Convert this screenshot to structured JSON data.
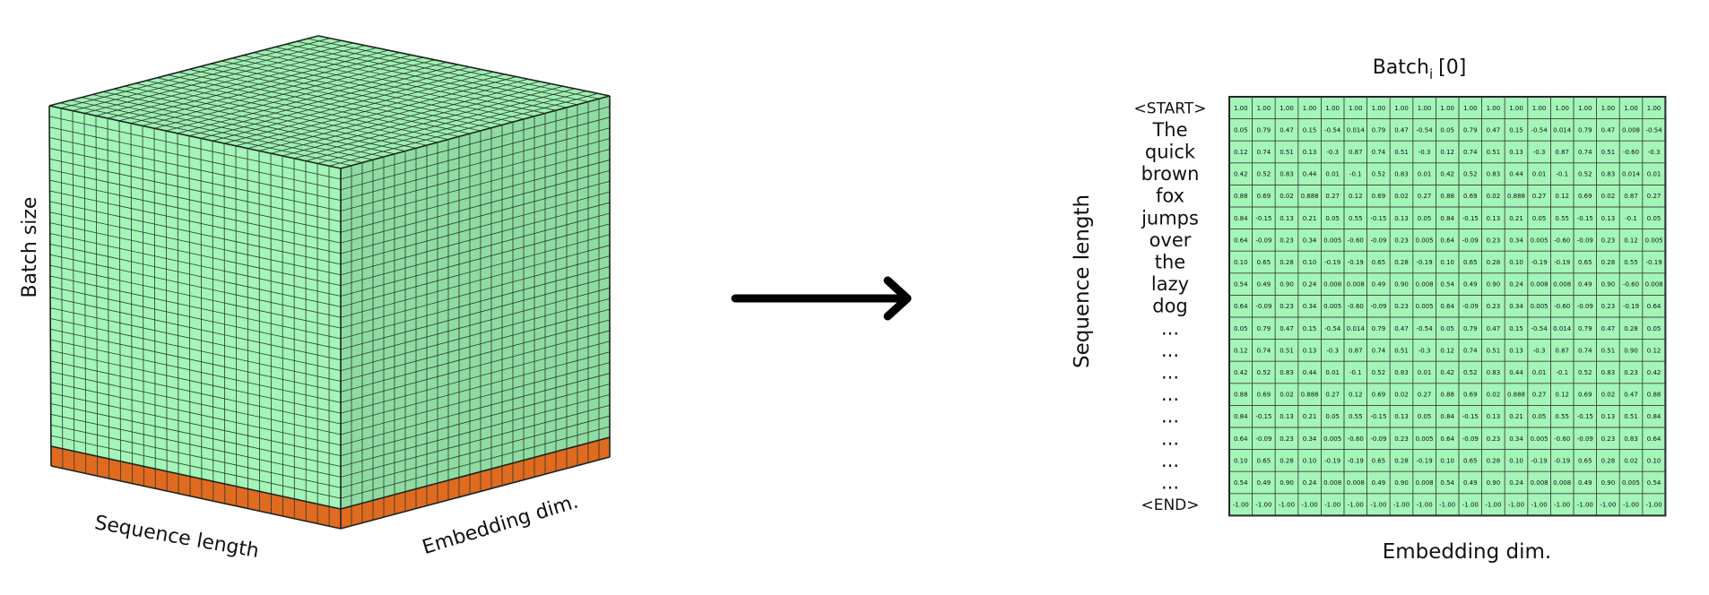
{
  "cube": {
    "batch_label": "Batch size",
    "sequence_label": "Sequence length",
    "embedding_label": "Embedding dim.",
    "front_color": "#a3f5b8",
    "side_color": "#8fdca3",
    "top_color": "#9ef0b2",
    "bottom_strip_color": "#e06a1f",
    "grid_line_color": "#2a3a2e"
  },
  "matrix": {
    "title_main": "Batch",
    "title_sub": "i",
    "title_index": "[0]",
    "row_axis_label": "Sequence length",
    "col_axis_label": "Embedding dim.",
    "cell_color": "#a3f5b8",
    "tokens": [
      "<START>",
      "The",
      "quick",
      "brown",
      "fox",
      "jumps",
      "over",
      "the",
      "lazy",
      "dog",
      "...",
      "...",
      "...",
      "...",
      "...",
      "...",
      "...",
      "...",
      "<END>"
    ],
    "rows": [
      [
        "1.00",
        "1.00",
        "1.00",
        "1.00",
        "1.00",
        "1.00",
        "1.00",
        "1.00",
        "1.00",
        "1.00",
        "1.00",
        "1.00",
        "1.00",
        "1.00",
        "1.00",
        "1.00",
        "1.00",
        "1.00",
        "1.00"
      ],
      [
        "0.05",
        "0.79",
        "0.47",
        "0.15",
        "-0.54",
        "0.014",
        "0.79",
        "0.47",
        "-0.54",
        "0.05",
        "0.79",
        "0.47",
        "0.15",
        "-0.54",
        "0.014",
        "0.79",
        "0.47",
        "0.008",
        "-0.54"
      ],
      [
        "0.12",
        "0.74",
        "0.51",
        "0.13",
        "-0.3",
        "0.87",
        "0.74",
        "0.51",
        "-0.3",
        "0.12",
        "0.74",
        "0.51",
        "0.13",
        "-0.3",
        "0.87",
        "0.74",
        "0.51",
        "-0.60",
        "-0.3"
      ],
      [
        "0.42",
        "0.52",
        "0.83",
        "0.44",
        "0.01",
        "-0.1",
        "0.52",
        "0.83",
        "0.01",
        "0.42",
        "0.52",
        "0.83",
        "0.44",
        "0.01",
        "-0.1",
        "0.52",
        "0.83",
        "0.014",
        "0.01"
      ],
      [
        "0.88",
        "0.69",
        "0.02",
        "0.888",
        "0.27",
        "0.12",
        "0.69",
        "0.02",
        "0.27",
        "0.88",
        "0.69",
        "0.02",
        "0.888",
        "0.27",
        "0.12",
        "0.69",
        "0.02",
        "0.87",
        "0.27"
      ],
      [
        "0.84",
        "-0.15",
        "0.13",
        "0.21",
        "0.05",
        "0.55",
        "-0.15",
        "0.13",
        "0.05",
        "0.84",
        "-0.15",
        "0.13",
        "0.21",
        "0.05",
        "0.55",
        "-0.15",
        "0.13",
        "-0.1",
        "0.05"
      ],
      [
        "0.64",
        "-0.09",
        "0.23",
        "0.34",
        "0.005",
        "-0.60",
        "-0.09",
        "0.23",
        "0.005",
        "0.64",
        "-0.09",
        "0.23",
        "0.34",
        "0.005",
        "-0.60",
        "-0.09",
        "0.23",
        "0.12",
        "0.005"
      ],
      [
        "0.10",
        "0.65",
        "0.28",
        "0.10",
        "-0.19",
        "-0.19",
        "0.65",
        "0.28",
        "-0.19",
        "0.10",
        "0.65",
        "0.28",
        "0.10",
        "-0.19",
        "-0.19",
        "0.65",
        "0.28",
        "0.55",
        "-0.19"
      ],
      [
        "0.54",
        "0.49",
        "0.90",
        "0.24",
        "0.008",
        "0.008",
        "0.49",
        "0.90",
        "0.008",
        "0.54",
        "0.49",
        "0.90",
        "0.24",
        "0.008",
        "0.008",
        "0.49",
        "0.90",
        "-0.60",
        "0.008"
      ],
      [
        "0.64",
        "-0.09",
        "0.23",
        "0.34",
        "0.005",
        "-0.60",
        "-0.09",
        "0.23",
        "0.005",
        "0.64",
        "-0.09",
        "0.23",
        "0.34",
        "0.005",
        "-0.60",
        "-0.09",
        "0.23",
        "-0.19",
        "0.64"
      ],
      [
        "0.05",
        "0.79",
        "0.47",
        "0.15",
        "-0.54",
        "0.014",
        "0.79",
        "0.47",
        "-0.54",
        "0.05",
        "0.79",
        "0.47",
        "0.15",
        "-0.54",
        "0.014",
        "0.79",
        "0.47",
        "0.28",
        "0.05"
      ],
      [
        "0.12",
        "0.74",
        "0.51",
        "0.13",
        "-0.3",
        "0.87",
        "0.74",
        "0.51",
        "-0.3",
        "0.12",
        "0.74",
        "0.51",
        "0.13",
        "-0.3",
        "0.87",
        "0.74",
        "0.51",
        "0.90",
        "0.12"
      ],
      [
        "0.42",
        "0.52",
        "0.83",
        "0.44",
        "0.01",
        "-0.1",
        "0.52",
        "0.83",
        "0.01",
        "0.42",
        "0.52",
        "0.83",
        "0.44",
        "0.01",
        "-0.1",
        "0.52",
        "0.83",
        "0.23",
        "0.42"
      ],
      [
        "0.88",
        "0.69",
        "0.02",
        "0.888",
        "0.27",
        "0.12",
        "0.69",
        "0.02",
        "0.27",
        "0.88",
        "0.69",
        "0.02",
        "0.888",
        "0.27",
        "0.12",
        "0.69",
        "0.02",
        "0.47",
        "0.88"
      ],
      [
        "0.84",
        "-0.15",
        "0.13",
        "0.21",
        "0.05",
        "0.55",
        "-0.15",
        "0.13",
        "0.05",
        "0.84",
        "-0.15",
        "0.13",
        "0.21",
        "0.05",
        "0.55",
        "-0.15",
        "0.13",
        "0.51",
        "0.84"
      ],
      [
        "0.64",
        "-0.09",
        "0.23",
        "0.34",
        "0.005",
        "-0.60",
        "-0.09",
        "0.23",
        "0.005",
        "0.64",
        "-0.09",
        "0.23",
        "0.34",
        "0.005",
        "-0.60",
        "-0.09",
        "0.23",
        "0.83",
        "0.64"
      ],
      [
        "0.10",
        "0.65",
        "0.28",
        "0.10",
        "-0.19",
        "-0.19",
        "0.65",
        "0.28",
        "-0.19",
        "0.10",
        "0.65",
        "0.28",
        "0.10",
        "-0.19",
        "-0.19",
        "0.65",
        "0.28",
        "0.02",
        "0.10"
      ],
      [
        "0.54",
        "0.49",
        "0.90",
        "0.24",
        "0.008",
        "0.008",
        "0.49",
        "0.90",
        "0.008",
        "0.54",
        "0.49",
        "0.90",
        "0.24",
        "0.008",
        "0.008",
        "0.49",
        "0.90",
        "0.005",
        "0.54"
      ],
      [
        "-1.00",
        "-1.00",
        "-1.00",
        "-1.00",
        "-1.00",
        "-1.00",
        "-1.00",
        "-1.00",
        "-1.00",
        "-1.00",
        "-1.00",
        "-1.00",
        "-1.00",
        "-1.00",
        "-1.00",
        "-1.00",
        "-1.00",
        "-1.00",
        "-1.00"
      ]
    ]
  },
  "arrow": {
    "icon": "arrow-right-icon"
  }
}
